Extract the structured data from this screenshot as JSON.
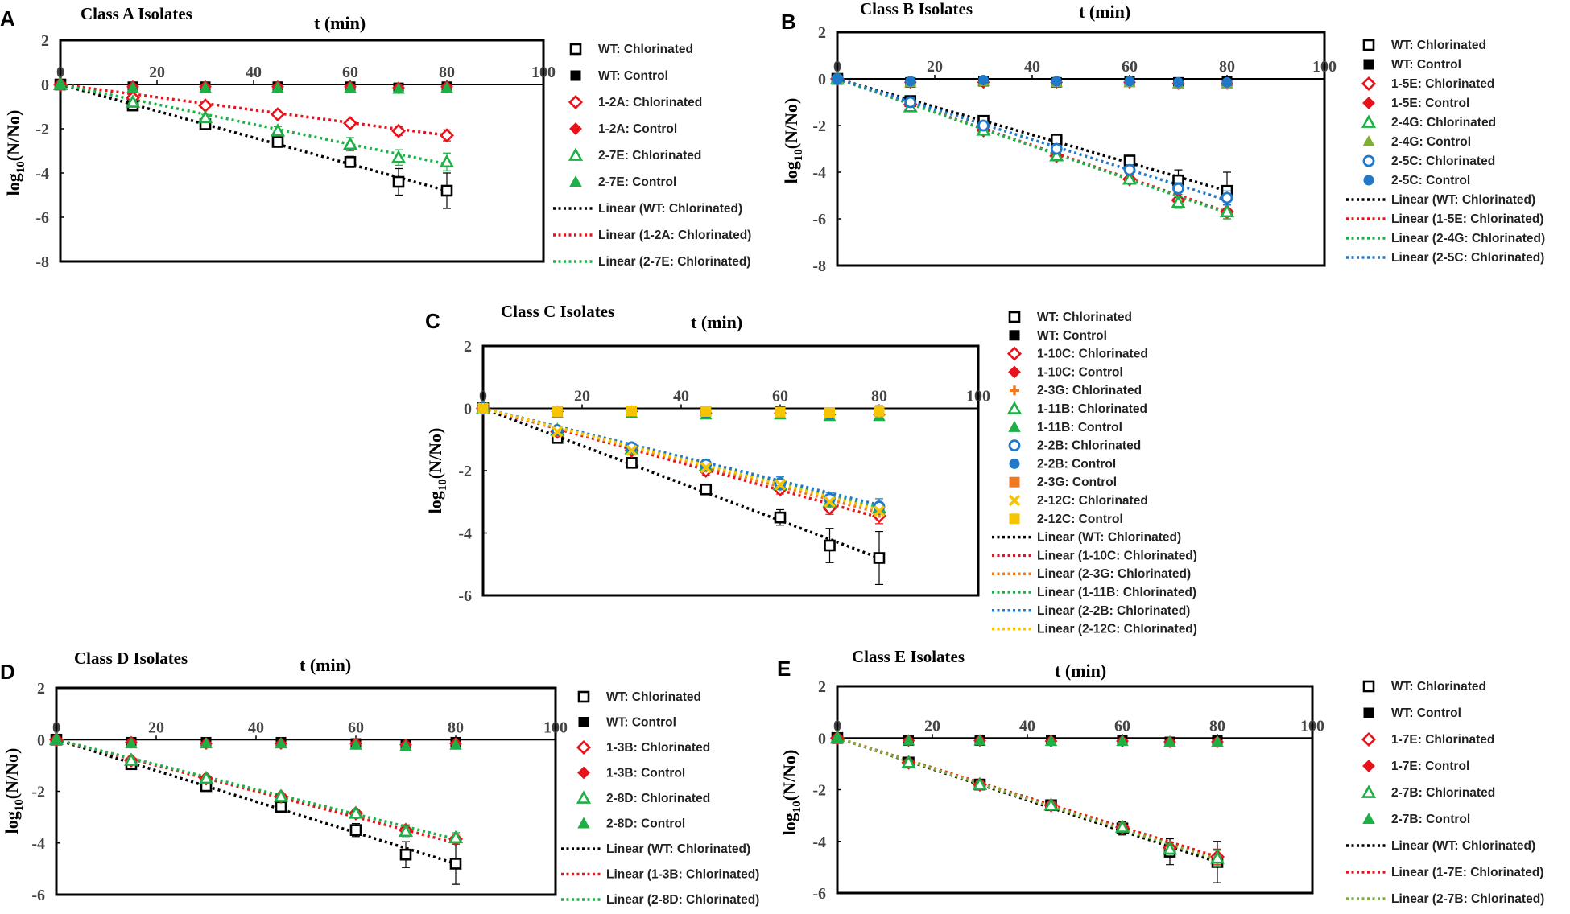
{
  "figure": {
    "x_axis_label": "t (min)",
    "y_axis_label_prefix": "log",
    "y_axis_label_sub": "10",
    "y_axis_label_suffix": "(N/No)"
  },
  "colors": {
    "wt": "#000000",
    "red": "#e8121b",
    "green": "#1db046",
    "orange": "#f07a21",
    "blue": "#1f78c8",
    "yellow": "#f6c400",
    "olive": "#7fb034"
  },
  "chart_data": [
    {
      "panel": "A",
      "type": "scatter",
      "title": "Class A Isolates",
      "xlabel": "t (min)",
      "ylabel": "log10(N/No)",
      "xlim": [
        0,
        100
      ],
      "ylim": [
        -8,
        2
      ],
      "xticks": [
        0,
        20,
        40,
        60,
        80,
        100
      ],
      "yticks": [
        2,
        0,
        -2,
        -4,
        -6,
        -8
      ],
      "x": [
        0,
        15,
        30,
        45,
        60,
        70,
        80
      ],
      "series": [
        {
          "name": "WT: Chlorinated",
          "marker": "square-open",
          "color": "#000000",
          "values": [
            0,
            -0.95,
            -1.8,
            -2.6,
            -3.5,
            -4.4,
            -4.8
          ],
          "err": [
            0,
            0.1,
            0.12,
            0.15,
            0.25,
            0.6,
            0.8
          ]
        },
        {
          "name": "WT: Control",
          "marker": "square",
          "color": "#000000",
          "values": [
            0,
            -0.1,
            -0.1,
            -0.1,
            -0.1,
            -0.15,
            -0.1
          ]
        },
        {
          "name": "1-2A: Chlorinated",
          "marker": "diamond-open",
          "color": "#e8121b",
          "values": [
            0,
            -0.6,
            -0.95,
            -1.35,
            -1.75,
            -2.1,
            -2.3
          ],
          "err": [
            0,
            0.05,
            0.1,
            0.1,
            0.15,
            0.2,
            0.25
          ]
        },
        {
          "name": "1-2A: Control",
          "marker": "diamond",
          "color": "#e8121b",
          "values": [
            0,
            -0.1,
            -0.1,
            -0.1,
            -0.1,
            -0.15,
            -0.1
          ]
        },
        {
          "name": "2-7E: Chlorinated",
          "marker": "triangle-open",
          "color": "#1db046",
          "values": [
            0,
            -0.8,
            -1.5,
            -2.1,
            -2.7,
            -3.3,
            -3.5
          ],
          "err": [
            0,
            0.1,
            0.15,
            0.2,
            0.3,
            0.35,
            0.4
          ]
        },
        {
          "name": "2-7E: Control",
          "marker": "triangle",
          "color": "#1db046",
          "values": [
            0,
            -0.15,
            -0.15,
            -0.15,
            -0.15,
            -0.2,
            -0.15
          ]
        }
      ],
      "trendlines": [
        {
          "name": "Linear (WT: Chlorinated)",
          "color": "#000000",
          "y_at_0": 0,
          "y_at_80": -4.8
        },
        {
          "name": "Linear (1-2A: Chlorinated)",
          "color": "#e8121b",
          "y_at_0": 0,
          "y_at_80": -2.3
        },
        {
          "name": "Linear (2-7E: Chlorinated)",
          "color": "#1db046",
          "y_at_0": 0,
          "y_at_80": -3.6
        }
      ]
    },
    {
      "panel": "B",
      "type": "scatter",
      "title": "Class B Isolates",
      "xlabel": "t (min)",
      "ylabel": "log10(N/No)",
      "xlim": [
        0,
        100
      ],
      "ylim": [
        -8,
        2
      ],
      "xticks": [
        0,
        20,
        40,
        60,
        80,
        100
      ],
      "yticks": [
        2,
        0,
        -2,
        -4,
        -6,
        -8
      ],
      "x": [
        0,
        15,
        30,
        45,
        60,
        70,
        80
      ],
      "series": [
        {
          "name": "WT: Chlorinated",
          "marker": "square-open",
          "color": "#000000",
          "values": [
            0,
            -0.95,
            -1.8,
            -2.6,
            -3.5,
            -4.35,
            -4.8
          ],
          "err": [
            0,
            0.1,
            0.1,
            0.15,
            0.2,
            0.45,
            0.8
          ]
        },
        {
          "name": "WT: Control",
          "marker": "square",
          "color": "#000000",
          "values": [
            0,
            -0.15,
            -0.1,
            -0.15,
            -0.1,
            -0.15,
            -0.1
          ]
        },
        {
          "name": "1-5E: Chlorinated",
          "marker": "diamond-open",
          "color": "#e8121b",
          "values": [
            0,
            -1.1,
            -2.2,
            -3.3,
            -4.3,
            -5.2,
            -5.7
          ],
          "err": [
            0,
            0.1,
            0.1,
            0.15,
            0.2,
            0.25,
            0.3
          ]
        },
        {
          "name": "1-5E: Control",
          "marker": "diamond",
          "color": "#e8121b",
          "values": [
            0,
            -0.15,
            -0.15,
            -0.15,
            -0.15,
            -0.2,
            -0.2
          ]
        },
        {
          "name": "2-4G: Chlorinated",
          "marker": "triangle-open",
          "color": "#1db046",
          "values": [
            0,
            -1.2,
            -2.2,
            -3.3,
            -4.3,
            -5.3,
            -5.7
          ],
          "err": [
            0,
            0.1,
            0.1,
            0.15,
            0.2,
            0.25,
            0.3
          ]
        },
        {
          "name": "2-4G: Control",
          "marker": "triangle",
          "color": "#7fb034",
          "values": [
            0,
            -0.15,
            -0.1,
            -0.15,
            -0.15,
            -0.2,
            -0.2
          ]
        },
        {
          "name": "2-5C: Chlorinated",
          "marker": "circle-open",
          "color": "#1f78c8",
          "values": [
            0,
            -1.0,
            -2.0,
            -3.0,
            -3.9,
            -4.7,
            -5.1
          ],
          "err": [
            0,
            0.1,
            0.1,
            0.15,
            0.2,
            0.25,
            0.3
          ]
        },
        {
          "name": "2-5C: Control",
          "marker": "circle",
          "color": "#1f78c8",
          "values": [
            0,
            -0.1,
            -0.05,
            -0.1,
            -0.1,
            -0.15,
            -0.15
          ]
        }
      ],
      "trendlines": [
        {
          "name": "Linear (WT: Chlorinated)",
          "color": "#000000",
          "y_at_0": 0,
          "y_at_80": -4.8
        },
        {
          "name": "Linear (1-5E: Chlorinated)",
          "color": "#e8121b",
          "y_at_0": 0,
          "y_at_80": -5.7
        },
        {
          "name": "Linear (2-4G: Chlorinated)",
          "color": "#1db046",
          "y_at_0": 0,
          "y_at_80": -5.75
        },
        {
          "name": "Linear (2-5C: Chlorinated)",
          "color": "#1f78c8",
          "y_at_0": 0,
          "y_at_80": -5.2
        }
      ]
    },
    {
      "panel": "C",
      "type": "scatter",
      "title": "Class C Isolates",
      "xlabel": "t (min)",
      "ylabel": "log10(N/No)",
      "xlim": [
        0,
        100
      ],
      "ylim": [
        -6,
        2
      ],
      "xticks": [
        0,
        20,
        40,
        60,
        80,
        100
      ],
      "yticks": [
        2,
        0,
        -2,
        -4,
        -6
      ],
      "x": [
        0,
        15,
        30,
        45,
        60,
        70,
        80
      ],
      "series": [
        {
          "name": "WT: Chlorinated",
          "marker": "square-open",
          "color": "#000000",
          "values": [
            0,
            -0.95,
            -1.75,
            -2.6,
            -3.5,
            -4.4,
            -4.8
          ],
          "err": [
            0,
            0.1,
            0.12,
            0.1,
            0.25,
            0.55,
            0.85
          ]
        },
        {
          "name": "WT: Control",
          "marker": "square",
          "color": "#000000",
          "values": [
            0,
            -0.1,
            -0.1,
            -0.1,
            -0.1,
            -0.15,
            -0.1
          ]
        },
        {
          "name": "1-10C: Chlorinated",
          "marker": "diamond-open",
          "color": "#e8121b",
          "values": [
            0,
            -0.75,
            -1.35,
            -2.0,
            -2.6,
            -3.2,
            -3.45
          ],
          "err": [
            0,
            0.1,
            0.1,
            0.15,
            0.15,
            0.2,
            0.25
          ]
        },
        {
          "name": "1-10C: Control",
          "marker": "diamond",
          "color": "#e8121b",
          "values": [
            0,
            -0.1,
            -0.1,
            -0.15,
            -0.15,
            -0.2,
            -0.2
          ]
        },
        {
          "name": "2-3G: Chlorinated",
          "marker": "plus",
          "color": "#f07a21",
          "values": [
            0,
            -0.75,
            -1.3,
            -1.9,
            -2.5,
            -3.05,
            -3.35
          ]
        },
        {
          "name": "1-11B: Chlorinated",
          "marker": "triangle-open",
          "color": "#1db046",
          "values": [
            0,
            -0.7,
            -1.3,
            -1.85,
            -2.45,
            -3.0,
            -3.2
          ]
        },
        {
          "name": "1-11B: Control",
          "marker": "triangle",
          "color": "#1db046",
          "values": [
            0,
            -0.15,
            -0.15,
            -0.2,
            -0.2,
            -0.25,
            -0.25
          ]
        },
        {
          "name": "2-2B: Chlorinated",
          "marker": "circle-open",
          "color": "#1f78c8",
          "values": [
            0,
            -0.7,
            -1.25,
            -1.8,
            -2.4,
            -2.9,
            -3.15
          ],
          "err": [
            0,
            0.1,
            0.1,
            0.15,
            0.2,
            0.2,
            0.25
          ]
        },
        {
          "name": "2-2B: Control",
          "marker": "circle",
          "color": "#1f78c8",
          "values": [
            0,
            -0.1,
            -0.1,
            -0.15,
            -0.15,
            -0.2,
            -0.15
          ]
        },
        {
          "name": "2-3G: Control",
          "marker": "square",
          "color": "#f07a21",
          "values": [
            0,
            -0.12,
            -0.1,
            -0.1,
            -0.12,
            -0.15,
            -0.1
          ]
        },
        {
          "name": "2-12C: Chlorinated",
          "marker": "x",
          "color": "#f6c400",
          "values": [
            0,
            -0.75,
            -1.35,
            -1.9,
            -2.45,
            -3.0,
            -3.3
          ]
        },
        {
          "name": "2-12C: Control",
          "marker": "square",
          "color": "#f6c400",
          "values": [
            0,
            -0.1,
            -0.08,
            -0.1,
            -0.12,
            -0.15,
            -0.1
          ],
          "err": [
            0,
            0.15,
            0.15,
            0.15,
            0.15,
            0.15,
            0.2
          ]
        }
      ],
      "trendlines": [
        {
          "name": "Linear (WT: Chlorinated)",
          "color": "#000000",
          "y_at_0": 0,
          "y_at_80": -4.8
        },
        {
          "name": "Linear (1-10C: Chlorinated)",
          "color": "#e8121b",
          "y_at_0": 0,
          "y_at_80": -3.5
        },
        {
          "name": "Linear (2-3G: Chlorinated)",
          "color": "#f07a21",
          "y_at_0": 0,
          "y_at_80": -3.35
        },
        {
          "name": "Linear (1-11B: Chlorinated)",
          "color": "#1db046",
          "y_at_0": 0,
          "y_at_80": -3.2
        },
        {
          "name": "Linear (2-2B: Chlorinated)",
          "color": "#1f78c8",
          "y_at_0": 0,
          "y_at_80": -3.1
        },
        {
          "name": "Linear (2-12C: Chlorinated)",
          "color": "#f6c400",
          "y_at_0": 0,
          "y_at_80": -3.25
        }
      ]
    },
    {
      "panel": "D",
      "type": "scatter",
      "title": "Class D Isolates",
      "xlabel": "t (min)",
      "ylabel": "log10(N/No)",
      "xlim": [
        0,
        100
      ],
      "ylim": [
        -6,
        2
      ],
      "xticks": [
        0,
        20,
        40,
        60,
        80,
        100
      ],
      "yticks": [
        2,
        0,
        -2,
        -4,
        -6
      ],
      "x": [
        0,
        15,
        30,
        45,
        60,
        70,
        80
      ],
      "series": [
        {
          "name": "WT: Chlorinated",
          "marker": "square-open",
          "color": "#000000",
          "values": [
            0,
            -0.95,
            -1.8,
            -2.6,
            -3.5,
            -4.45,
            -4.8
          ],
          "err": [
            0,
            0.1,
            0.12,
            0.1,
            0.25,
            0.5,
            0.8
          ]
        },
        {
          "name": "WT: Control",
          "marker": "square",
          "color": "#000000",
          "values": [
            0,
            -0.1,
            -0.1,
            -0.1,
            -0.15,
            -0.2,
            -0.1
          ]
        },
        {
          "name": "1-3B: Chlorinated",
          "marker": "diamond-open",
          "color": "#e8121b",
          "values": [
            0,
            -0.8,
            -1.5,
            -2.2,
            -2.85,
            -3.5,
            -3.85
          ],
          "err": [
            0,
            0.1,
            0.1,
            0.1,
            0.15,
            0.2,
            0.2
          ]
        },
        {
          "name": "1-3B: Control",
          "marker": "diamond",
          "color": "#e8121b",
          "values": [
            0,
            -0.1,
            -0.15,
            -0.15,
            -0.15,
            -0.2,
            -0.15
          ]
        },
        {
          "name": "2-8D: Chlorinated",
          "marker": "triangle-open",
          "color": "#1db046",
          "values": [
            0,
            -0.8,
            -1.5,
            -2.2,
            -2.85,
            -3.55,
            -3.8
          ],
          "err": [
            0,
            0.1,
            0.1,
            0.1,
            0.15,
            0.2,
            0.2
          ]
        },
        {
          "name": "2-8D: Control",
          "marker": "triangle",
          "color": "#1db046",
          "values": [
            0,
            -0.15,
            -0.15,
            -0.15,
            -0.2,
            -0.25,
            -0.2
          ]
        }
      ],
      "trendlines": [
        {
          "name": "Linear (WT: Chlorinated)",
          "color": "#000000",
          "y_at_0": 0,
          "y_at_80": -4.8
        },
        {
          "name": "Linear (1-3B: Chlorinated)",
          "color": "#e8121b",
          "y_at_0": 0,
          "y_at_80": -4.0
        },
        {
          "name": "Linear (2-8D: Chlorinated)",
          "color": "#1db046",
          "y_at_0": 0,
          "y_at_80": -3.85
        }
      ]
    },
    {
      "panel": "E",
      "type": "scatter",
      "title": "Class E Isolates",
      "xlabel": "t (min)",
      "ylabel": "log10(N/No)",
      "xlim": [
        0,
        100
      ],
      "ylim": [
        -6,
        2
      ],
      "xticks": [
        0,
        20,
        40,
        60,
        80,
        100
      ],
      "yticks": [
        2,
        0,
        -2,
        -4,
        -6
      ],
      "x": [
        0,
        15,
        30,
        45,
        60,
        70,
        80
      ],
      "series": [
        {
          "name": "WT: Chlorinated",
          "marker": "square-open",
          "color": "#000000",
          "values": [
            0,
            -0.95,
            -1.8,
            -2.6,
            -3.5,
            -4.4,
            -4.8
          ],
          "err": [
            0,
            0.1,
            0.12,
            0.1,
            0.25,
            0.5,
            0.8
          ]
        },
        {
          "name": "WT: Control",
          "marker": "square",
          "color": "#000000",
          "values": [
            0,
            -0.1,
            -0.1,
            -0.1,
            -0.1,
            -0.15,
            -0.1
          ]
        },
        {
          "name": "1-7E: Chlorinated",
          "marker": "diamond-open",
          "color": "#e8121b",
          "values": [
            0,
            -0.95,
            -1.8,
            -2.6,
            -3.45,
            -4.25,
            -4.6
          ],
          "err": [
            0,
            0.1,
            0.1,
            0.1,
            0.15,
            0.2,
            0.3
          ]
        },
        {
          "name": "1-7E: Control",
          "marker": "diamond",
          "color": "#e8121b",
          "values": [
            0,
            -0.1,
            -0.1,
            -0.12,
            -0.12,
            -0.15,
            -0.15
          ]
        },
        {
          "name": "2-7B: Chlorinated",
          "marker": "triangle-open",
          "color": "#1db046",
          "values": [
            0,
            -0.95,
            -1.8,
            -2.6,
            -3.45,
            -4.3,
            -4.65
          ],
          "err": [
            0,
            0.1,
            0.1,
            0.1,
            0.15,
            0.2,
            0.3
          ]
        },
        {
          "name": "2-7B: Control",
          "marker": "triangle",
          "color": "#1db046",
          "values": [
            0,
            -0.1,
            -0.1,
            -0.12,
            -0.12,
            -0.15,
            -0.15
          ]
        }
      ],
      "trendlines": [
        {
          "name": "Linear (WT: Chlorinated)",
          "color": "#000000",
          "y_at_0": 0,
          "y_at_80": -4.8
        },
        {
          "name": "Linear (1-7E: Chlorinated)",
          "color": "#e8121b",
          "y_at_0": 0,
          "y_at_80": -4.6
        },
        {
          "name": "Linear (2-7B: Chlorinated)",
          "color": "#7fb034",
          "y_at_0": 0,
          "y_at_80": -4.7
        }
      ]
    }
  ]
}
